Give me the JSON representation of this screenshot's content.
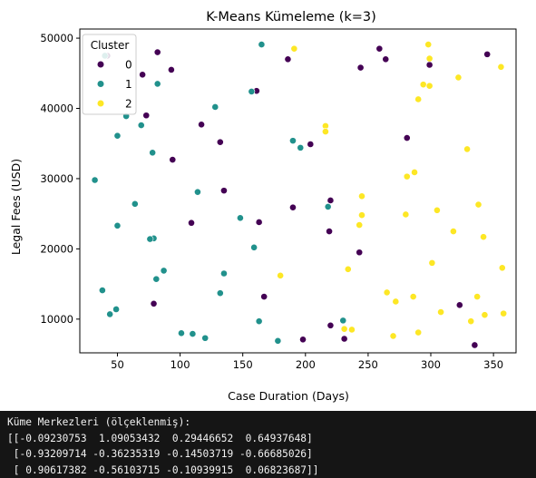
{
  "chart_data": {
    "type": "scatter",
    "title": "K-Means Kümeleme (k=3)",
    "xlabel": "Case Duration (Days)",
    "ylabel": "Legal Fees (USD)",
    "xlim": [
      20,
      368
    ],
    "ylim": [
      5200,
      51300
    ],
    "x_ticks": [
      50,
      100,
      150,
      200,
      250,
      300,
      350
    ],
    "y_ticks": [
      10000,
      20000,
      30000,
      40000,
      50000
    ],
    "grid": false,
    "legend": {
      "title": "Cluster",
      "placement": "top-left"
    },
    "series": [
      {
        "name": "0",
        "color": "#440154",
        "points": [
          [
            42,
            47500
          ],
          [
            70,
            44800
          ],
          [
            82,
            48000
          ],
          [
            93,
            45500
          ],
          [
            73,
            39000
          ],
          [
            117,
            37700
          ],
          [
            132,
            35200
          ],
          [
            94,
            32700
          ],
          [
            135,
            28300
          ],
          [
            109,
            23700
          ],
          [
            163,
            23800
          ],
          [
            79,
            12200
          ],
          [
            167,
            13200
          ],
          [
            161,
            42500
          ],
          [
            186,
            47000
          ],
          [
            190,
            25900
          ],
          [
            204,
            34900
          ],
          [
            219,
            22500
          ],
          [
            220,
            26900
          ],
          [
            243,
            19500
          ],
          [
            220,
            9100
          ],
          [
            198,
            7100
          ],
          [
            231,
            7200
          ],
          [
            244,
            45800
          ],
          [
            259,
            48500
          ],
          [
            264,
            47000
          ],
          [
            281,
            35800
          ],
          [
            299,
            46200
          ],
          [
            345,
            47700
          ],
          [
            323,
            12000
          ],
          [
            335,
            6300
          ]
        ]
      },
      {
        "name": "1",
        "color": "#21918c",
        "points": [
          [
            40,
            47500
          ],
          [
            82,
            43500
          ],
          [
            57,
            38900
          ],
          [
            69,
            37600
          ],
          [
            50,
            36100
          ],
          [
            78,
            33700
          ],
          [
            32,
            29800
          ],
          [
            64,
            26400
          ],
          [
            50,
            23300
          ],
          [
            79,
            21500
          ],
          [
            76,
            21400
          ],
          [
            114,
            28100
          ],
          [
            128,
            40200
          ],
          [
            157,
            42400
          ],
          [
            165,
            49100
          ],
          [
            190,
            35400
          ],
          [
            196,
            34400
          ],
          [
            218,
            26000
          ],
          [
            148,
            24400
          ],
          [
            159,
            20200
          ],
          [
            135,
            16500
          ],
          [
            87,
            16900
          ],
          [
            81,
            15700
          ],
          [
            38,
            14100
          ],
          [
            132,
            13700
          ],
          [
            49,
            11400
          ],
          [
            44,
            10700
          ],
          [
            163,
            9700
          ],
          [
            230,
            9800
          ],
          [
            101,
            8000
          ],
          [
            110,
            7900
          ],
          [
            120,
            7300
          ],
          [
            178,
            6900
          ]
        ]
      },
      {
        "name": "2",
        "color": "#fde725",
        "points": [
          [
            191,
            48500
          ],
          [
            298,
            49100
          ],
          [
            299,
            47100
          ],
          [
            356,
            45900
          ],
          [
            322,
            44400
          ],
          [
            294,
            43400
          ],
          [
            299,
            43200
          ],
          [
            290,
            41300
          ],
          [
            216,
            37500
          ],
          [
            216,
            36700
          ],
          [
            329,
            34200
          ],
          [
            281,
            30300
          ],
          [
            287,
            30900
          ],
          [
            245,
            27500
          ],
          [
            338,
            26300
          ],
          [
            245,
            24800
          ],
          [
            243,
            23400
          ],
          [
            280,
            24900
          ],
          [
            305,
            25500
          ],
          [
            318,
            22500
          ],
          [
            342,
            21700
          ],
          [
            301,
            18000
          ],
          [
            357,
            17300
          ],
          [
            234,
            17100
          ],
          [
            180,
            16200
          ],
          [
            265,
            13800
          ],
          [
            286,
            13200
          ],
          [
            337,
            13200
          ],
          [
            272,
            12500
          ],
          [
            308,
            11000
          ],
          [
            332,
            9700
          ],
          [
            343,
            10600
          ],
          [
            358,
            10800
          ],
          [
            231,
            8600
          ],
          [
            237,
            8500
          ],
          [
            290,
            8100
          ],
          [
            270,
            7600
          ]
        ]
      }
    ]
  },
  "console": {
    "lines": [
      "Küme Merkezleri (ölçeklenmiş):",
      "[[-0.09230753  1.09053432  0.29446652  0.64937648]",
      " [-0.93209714 -0.36235319 -0.14503719 -0.66685026]",
      " [ 0.90617382 -0.56103715 -0.10939915  0.06823687]]"
    ]
  }
}
